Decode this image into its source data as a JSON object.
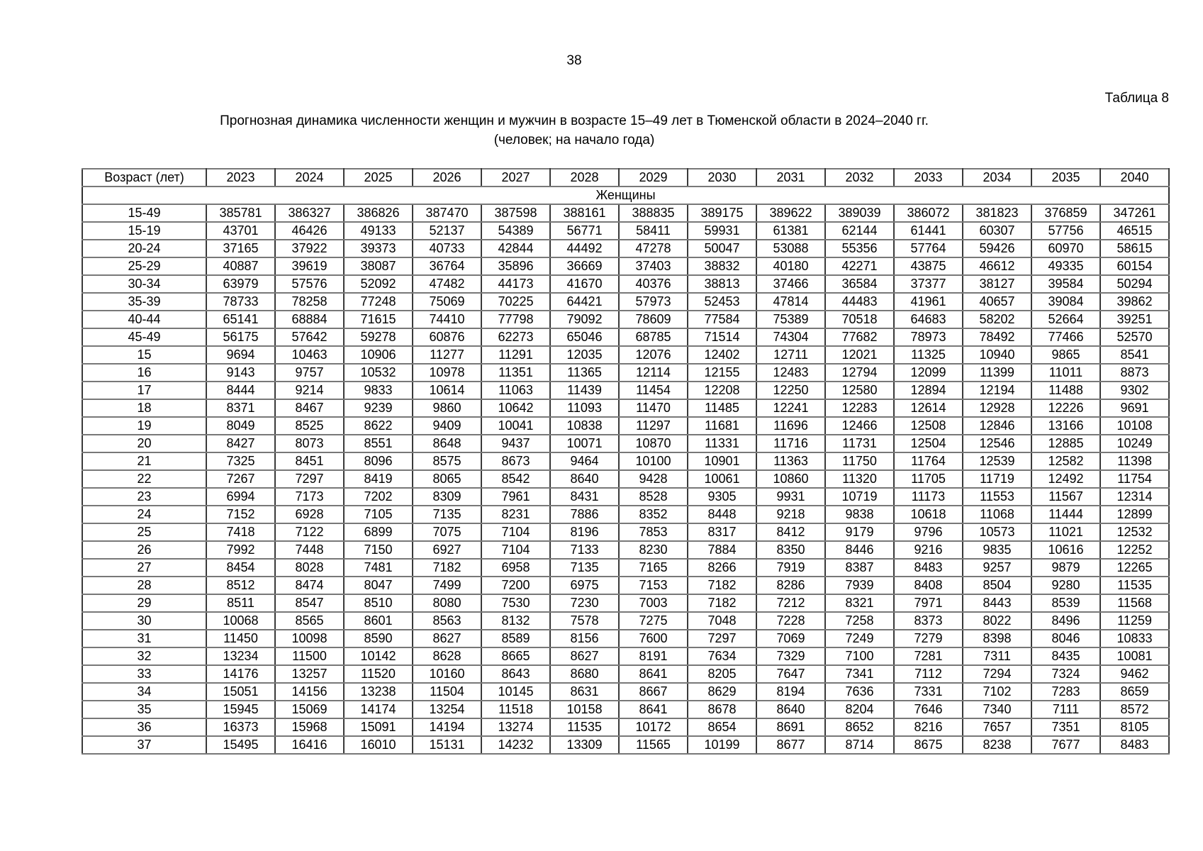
{
  "page": {
    "number": "38",
    "table_label": "Таблица 8",
    "title": "Прогнозная динамика численности женщин и мужчин в возрасте 15–49 лет в Тюменской области в 2024–2040 гг.",
    "subtitle": "(человек; на начало года)"
  },
  "table": {
    "columns": [
      "Возраст (лет)",
      "2023",
      "2024",
      "2025",
      "2026",
      "2027",
      "2028",
      "2029",
      "2030",
      "2031",
      "2032",
      "2033",
      "2034",
      "2035",
      "2040"
    ],
    "section": "Женщины",
    "rows": [
      {
        "age": "15-49",
        "values": [
          385781,
          386327,
          386826,
          387470,
          387598,
          388161,
          388835,
          389175,
          389622,
          389039,
          386072,
          381823,
          376859,
          347261
        ]
      },
      {
        "age": "15-19",
        "values": [
          43701,
          46426,
          49133,
          52137,
          54389,
          56771,
          58411,
          59931,
          61381,
          62144,
          61441,
          60307,
          57756,
          46515
        ]
      },
      {
        "age": "20-24",
        "values": [
          37165,
          37922,
          39373,
          40733,
          42844,
          44492,
          47278,
          50047,
          53088,
          55356,
          57764,
          59426,
          60970,
          58615
        ]
      },
      {
        "age": "25-29",
        "values": [
          40887,
          39619,
          38087,
          36764,
          35896,
          36669,
          37403,
          38832,
          40180,
          42271,
          43875,
          46612,
          49335,
          60154
        ]
      },
      {
        "age": "30-34",
        "values": [
          63979,
          57576,
          52092,
          47482,
          44173,
          41670,
          40376,
          38813,
          37466,
          36584,
          37377,
          38127,
          39584,
          50294
        ]
      },
      {
        "age": "35-39",
        "values": [
          78733,
          78258,
          77248,
          75069,
          70225,
          64421,
          57973,
          52453,
          47814,
          44483,
          41961,
          40657,
          39084,
          39862
        ]
      },
      {
        "age": "40-44",
        "values": [
          65141,
          68884,
          71615,
          74410,
          77798,
          79092,
          78609,
          77584,
          75389,
          70518,
          64683,
          58202,
          52664,
          39251
        ]
      },
      {
        "age": "45-49",
        "values": [
          56175,
          57642,
          59278,
          60876,
          62273,
          65046,
          68785,
          71514,
          74304,
          77682,
          78973,
          78492,
          77466,
          52570
        ]
      },
      {
        "age": "15",
        "values": [
          9694,
          10463,
          10906,
          11277,
          11291,
          12035,
          12076,
          12402,
          12711,
          12021,
          11325,
          10940,
          9865,
          8541
        ]
      },
      {
        "age": "16",
        "values": [
          9143,
          9757,
          10532,
          10978,
          11351,
          11365,
          12114,
          12155,
          12483,
          12794,
          12099,
          11399,
          11011,
          8873
        ]
      },
      {
        "age": "17",
        "values": [
          8444,
          9214,
          9833,
          10614,
          11063,
          11439,
          11454,
          12208,
          12250,
          12580,
          12894,
          12194,
          11488,
          9302
        ]
      },
      {
        "age": "18",
        "values": [
          8371,
          8467,
          9239,
          9860,
          10642,
          11093,
          11470,
          11485,
          12241,
          12283,
          12614,
          12928,
          12226,
          9691
        ]
      },
      {
        "age": "19",
        "values": [
          8049,
          8525,
          8622,
          9409,
          10041,
          10838,
          11297,
          11681,
          11696,
          12466,
          12508,
          12846,
          13166,
          10108
        ]
      },
      {
        "age": "20",
        "values": [
          8427,
          8073,
          8551,
          8648,
          9437,
          10071,
          10870,
          11331,
          11716,
          11731,
          12504,
          12546,
          12885,
          10249
        ]
      },
      {
        "age": "21",
        "values": [
          7325,
          8451,
          8096,
          8575,
          8673,
          9464,
          10100,
          10901,
          11363,
          11750,
          11764,
          12539,
          12582,
          11398
        ]
      },
      {
        "age": "22",
        "values": [
          7267,
          7297,
          8419,
          8065,
          8542,
          8640,
          9428,
          10061,
          10860,
          11320,
          11705,
          11719,
          12492,
          11754
        ]
      },
      {
        "age": "23",
        "values": [
          6994,
          7173,
          7202,
          8309,
          7961,
          8431,
          8528,
          9305,
          9931,
          10719,
          11173,
          11553,
          11567,
          12314
        ]
      },
      {
        "age": "24",
        "values": [
          7152,
          6928,
          7105,
          7135,
          8231,
          7886,
          8352,
          8448,
          9218,
          9838,
          10618,
          11068,
          11444,
          12899
        ]
      },
      {
        "age": "25",
        "values": [
          7418,
          7122,
          6899,
          7075,
          7104,
          8196,
          7853,
          8317,
          8412,
          9179,
          9796,
          10573,
          11021,
          12532
        ]
      },
      {
        "age": "26",
        "values": [
          7992,
          7448,
          7150,
          6927,
          7104,
          7133,
          8230,
          7884,
          8350,
          8446,
          9216,
          9835,
          10616,
          12252
        ]
      },
      {
        "age": "27",
        "values": [
          8454,
          8028,
          7481,
          7182,
          6958,
          7135,
          7165,
          8266,
          7919,
          8387,
          8483,
          9257,
          9879,
          12265
        ]
      },
      {
        "age": "28",
        "values": [
          8512,
          8474,
          8047,
          7499,
          7200,
          6975,
          7153,
          7182,
          8286,
          7939,
          8408,
          8504,
          9280,
          11535
        ]
      },
      {
        "age": "29",
        "values": [
          8511,
          8547,
          8510,
          8080,
          7530,
          7230,
          7003,
          7182,
          7212,
          8321,
          7971,
          8443,
          8539,
          11568
        ]
      },
      {
        "age": "30",
        "values": [
          10068,
          8565,
          8601,
          8563,
          8132,
          7578,
          7275,
          7048,
          7228,
          7258,
          8373,
          8022,
          8496,
          11259
        ]
      },
      {
        "age": "31",
        "values": [
          11450,
          10098,
          8590,
          8627,
          8589,
          8156,
          7600,
          7297,
          7069,
          7249,
          7279,
          8398,
          8046,
          10833
        ]
      },
      {
        "age": "32",
        "values": [
          13234,
          11500,
          10142,
          8628,
          8665,
          8627,
          8191,
          7634,
          7329,
          7100,
          7281,
          7311,
          8435,
          10081
        ]
      },
      {
        "age": "33",
        "values": [
          14176,
          13257,
          11520,
          10160,
          8643,
          8680,
          8641,
          8205,
          7647,
          7341,
          7112,
          7294,
          7324,
          9462
        ]
      },
      {
        "age": "34",
        "values": [
          15051,
          14156,
          13238,
          11504,
          10145,
          8631,
          8667,
          8629,
          8194,
          7636,
          7331,
          7102,
          7283,
          8659
        ]
      },
      {
        "age": "35",
        "values": [
          15945,
          15069,
          14174,
          13254,
          11518,
          10158,
          8641,
          8678,
          8640,
          8204,
          7646,
          7340,
          7111,
          8572
        ]
      },
      {
        "age": "36",
        "values": [
          16373,
          15968,
          15091,
          14194,
          13274,
          11535,
          10172,
          8654,
          8691,
          8652,
          8216,
          7657,
          7351,
          8105
        ]
      },
      {
        "age": "37",
        "values": [
          15495,
          16416,
          16010,
          15131,
          14232,
          13309,
          11565,
          10199,
          8677,
          8714,
          8675,
          8238,
          7677,
          8483
        ]
      }
    ]
  }
}
